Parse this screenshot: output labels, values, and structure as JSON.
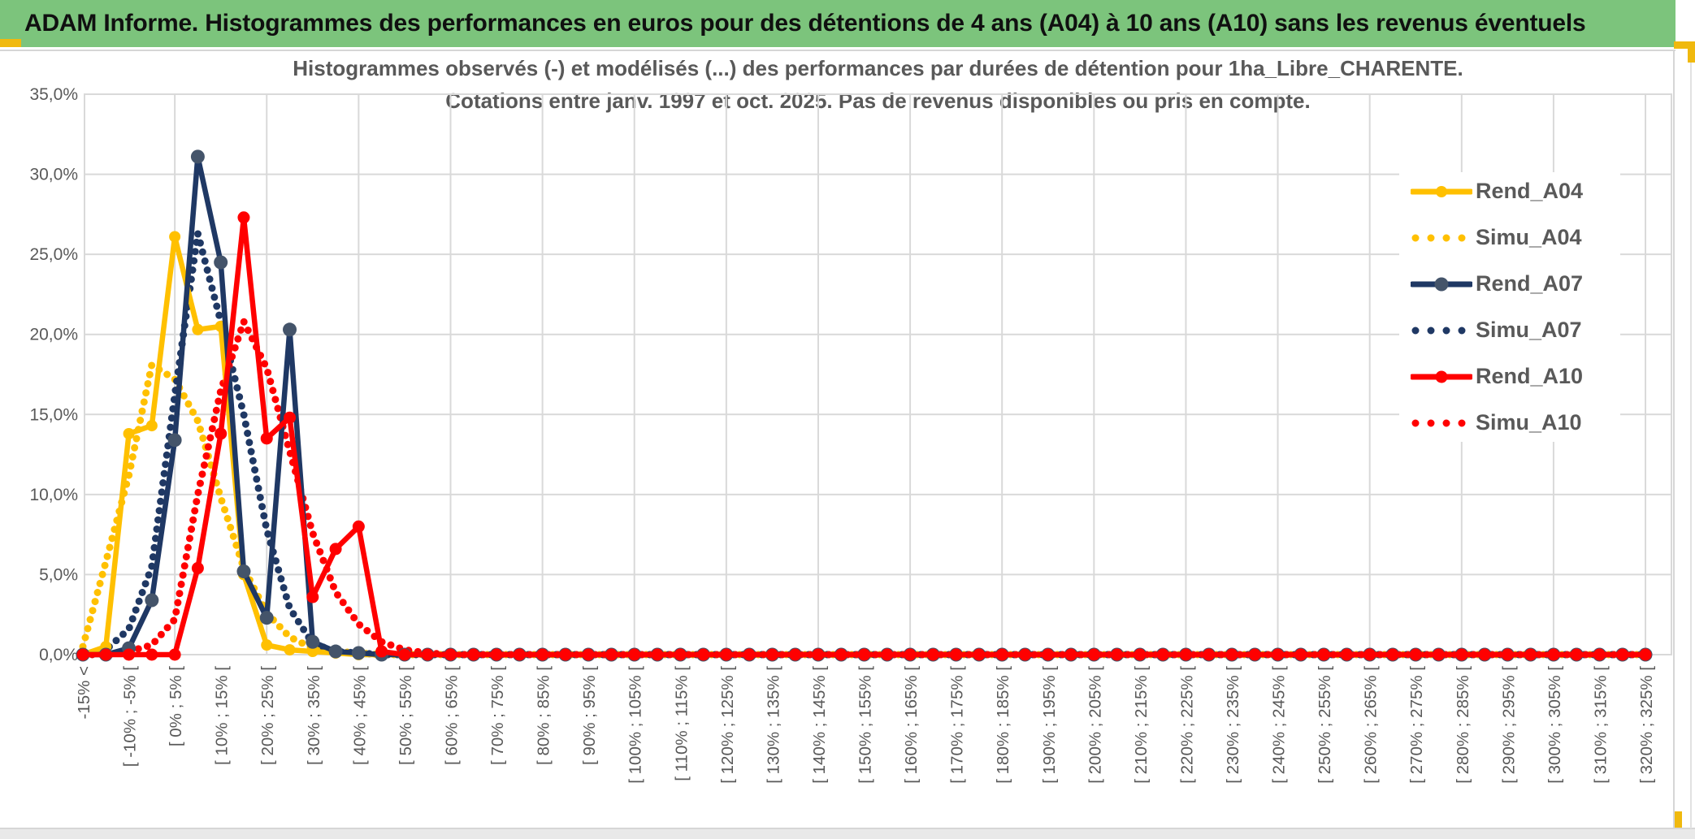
{
  "header": {
    "title": "ADAM Informe. Histogrammes des performances en euros pour des détentions de 4 ans (A04) à 10 ans (A10) sans les revenus éventuels"
  },
  "chart": {
    "title_line1": "Histogrammes observés (-) et modélisés (...) des performances par durées de détention pour 1ha_Libre_CHARENTE.",
    "title_line2": "Cotations entre janv. 1997 et oct. 2025. Pas de revenus disponibles ou pris en compte."
  },
  "colors": {
    "header_green": "#7CC47C",
    "accent_gold": "#F0B90E",
    "grid": "#D9D9D9",
    "text_gray": "#595959",
    "series_gold": "#FFC000",
    "series_navy": "#1F3864",
    "navy_marker": "#44546A",
    "series_red": "#FF0000"
  },
  "chart_data": {
    "type": "line",
    "title": "Histogrammes observés (-) et modélisés (...) des performances par durées de détention pour 1ha_Libre_CHARENTE. Cotations entre janv. 1997 et oct. 2025. Pas de revenus disponibles ou pris en compte.",
    "n_categories": 69,
    "bin_width_pct": 5,
    "x_tick_labels_every_other_bin": [
      "-15% <",
      "[ -10% ; -5% [",
      "[ 0% ; 5% [",
      "[ 10% ; 15% [",
      "[ 20% ; 25% [",
      "[ 30% ; 35% [",
      "[ 40% ; 45% [",
      "[ 50% ; 55% [",
      "[ 60% ; 65% [",
      "[ 70% ; 75% [",
      "[ 80% ; 85% [",
      "[ 90% ; 95% [",
      "[ 100% ; 105% [",
      "[ 110% ; 115% [",
      "[ 120% ; 125% [",
      "[ 130% ; 135% [",
      "[ 140% ; 145% [",
      "[ 150% ; 155% [",
      "[ 160% ; 165% [",
      "[ 170% ; 175% [",
      "[ 180% ; 185% [",
      "[ 190% ; 195% [",
      "[ 200% ; 205% [",
      "[ 210% ; 215% [",
      "[ 220% ; 225% [",
      "[ 230% ; 235% [",
      "[ 240% ; 245% [",
      "[ 250% ; 255% [",
      "[ 260% ; 265% [",
      "[ 270% ; 275% [",
      "[ 280% ; 285% [",
      "[ 290% ; 295% [",
      "[ 300% ; 305% [",
      "[ 310% ; 315% [",
      "[ 320% ; 325% ["
    ],
    "ylim": [
      0,
      35
    ],
    "y_tick_step": 5,
    "y_tick_labels": [
      "0,0%",
      "5,0%",
      "10,0%",
      "15,0%",
      "20,0%",
      "25,0%",
      "30,0%",
      "35,0%"
    ],
    "grid": true,
    "legend_position": "right",
    "series": [
      {
        "name": "Rend_A04",
        "style": "solid",
        "color": "#FFC000",
        "marker_color": "#FFC000",
        "marker_r": 7,
        "values": [
          0,
          0.5,
          13.8,
          14.3,
          26.1,
          20.3,
          20.5,
          5.0,
          0.6,
          0.3,
          0.2,
          0.1
        ]
      },
      {
        "name": "Simu_A04",
        "style": "dotted",
        "color": "#FFC000",
        "values": [
          0.5,
          5.8,
          11.2,
          18.1,
          17.2,
          14.6,
          9.8,
          5.4,
          2.6,
          1.1,
          0.4,
          0.2,
          0.1
        ]
      },
      {
        "name": "Rend_A07",
        "style": "solid",
        "color": "#1F3864",
        "marker_color": "#44546A",
        "marker_r": 8.5,
        "values": [
          0,
          0,
          0.4,
          3.4,
          13.4,
          31.1,
          24.5,
          5.2,
          2.3,
          20.3,
          0.8,
          0.2,
          0.1
        ]
      },
      {
        "name": "Simu_A07",
        "style": "dotted",
        "color": "#1F3864",
        "values": [
          0,
          0.3,
          1.6,
          5.5,
          16.2,
          26.3,
          20.8,
          15.0,
          7.8,
          2.9,
          0.7,
          0.2,
          0.1
        ]
      },
      {
        "name": "Rend_A10",
        "style": "solid",
        "color": "#FF0000",
        "marker_color": "#FF0000",
        "marker_r": 7.5,
        "values": [
          0,
          0,
          0,
          0,
          0,
          5.4,
          13.8,
          27.3,
          13.5,
          14.8,
          3.6,
          6.6,
          8.0,
          0.2
        ]
      },
      {
        "name": "Simu_A10",
        "style": "dotted",
        "color": "#FF0000",
        "values": [
          0,
          0,
          0.2,
          0.6,
          2.2,
          10.0,
          16.5,
          20.8,
          17.9,
          12.7,
          7.6,
          3.9,
          1.9,
          0.8,
          0.3,
          0.1
        ]
      }
    ]
  }
}
